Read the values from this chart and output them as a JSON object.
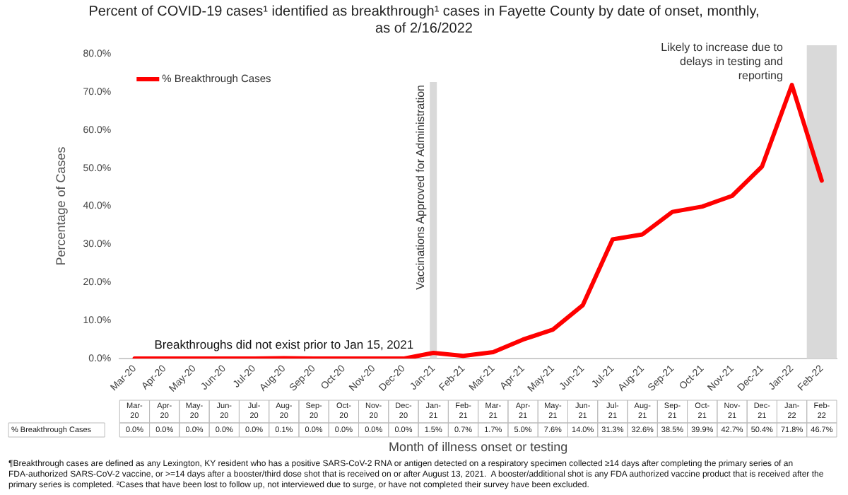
{
  "chart_data": {
    "type": "line",
    "title": "Percent of COVID-19 cases¹ identified as breakthrough¹ cases in Fayette County by date of onset, monthly, as of 2/16/2022",
    "xlabel": "Month of illness onset or testing",
    "ylabel": "Percentage of Cases",
    "categories": [
      "Mar-20",
      "Apr-20",
      "May-20",
      "Jun-20",
      "Jul-20",
      "Aug-20",
      "Sep-20",
      "Oct-20",
      "Nov-20",
      "Dec-20",
      "Jan-21",
      "Feb-21",
      "Mar-21",
      "Apr-21",
      "May-21",
      "Jun-21",
      "Jul-21",
      "Aug-21",
      "Sep-21",
      "Oct-21",
      "Nov-21",
      "Dec-21",
      "Jan-22",
      "Feb-22"
    ],
    "series": [
      {
        "name": "% Breakthrough Cases",
        "color": "#ff0000",
        "values": [
          0,
          0,
          0,
          0,
          0,
          0.1,
          0,
          0,
          0,
          0,
          1.5,
          0.7,
          1.7,
          5.0,
          7.6,
          14.0,
          31.3,
          32.6,
          38.5,
          39.9,
          42.7,
          50.4,
          71.8,
          46.7
        ],
        "value_labels": [
          "0.0%",
          "0.0%",
          "0.0%",
          "0.0%",
          "0.0%",
          "0.1%",
          "0.0%",
          "0.0%",
          "0.0%",
          "0.0%",
          "1.5%",
          "0.7%",
          "1.7%",
          "5.0%",
          "7.6%",
          "14.0%",
          "31.3%",
          "32.6%",
          "38.5%",
          "39.9%",
          "42.7%",
          "50.4%",
          "71.8%",
          "46.7%"
        ]
      }
    ],
    "ylim": [
      0,
      80
    ],
    "yticks": [
      {
        "value": 0,
        "label": "0.0%"
      },
      {
        "value": 10,
        "label": "10.0%"
      },
      {
        "value": 20,
        "label": "20.0%"
      },
      {
        "value": 30,
        "label": "30.0%"
      },
      {
        "value": 40,
        "label": "40.0%"
      },
      {
        "value": 50,
        "label": "50.0%"
      },
      {
        "value": 60,
        "label": "60.0%"
      },
      {
        "value": 70,
        "label": "70.0%"
      },
      {
        "value": 80,
        "label": "80.0%"
      }
    ],
    "grid": false,
    "legend": "top left",
    "marker": "none",
    "line_style": "solid",
    "ref_lines": [
      {
        "axis": "x",
        "value": "Jan-21",
        "label": "Vaccinations Approved for Administration",
        "color": "#d9d9d9"
      }
    ],
    "bands": [
      {
        "axis": "x",
        "from": "Feb-22",
        "to": "Feb-22",
        "label": "Likely to increase due to delays in testing and reporting",
        "color": "#d9d9d9"
      }
    ],
    "annotations": [
      {
        "text": "Breakthroughs did not exist prior to Jan 15, 2021",
        "x": "Aug-20",
        "y": 2
      },
      "¶Breakthrough cases are defined as any Lexington, KY resident who has a positive SARS-CoV-2 RNA or antigen detected on a respiratory specimen collected ≥14 days after completing the primary series of an FDA-authorized SARS-CoV-2 vaccine, or >=14 days after a booster/third dose shot that is received on or after August 13, 2021.  A booster/additional shot is any FDA authorized vaccine product that is received after the primary series is completed. ²Cases that have been lost to follow up, not interviewed due to surge, or have not completed their survey have been excluded."
    ]
  }
}
